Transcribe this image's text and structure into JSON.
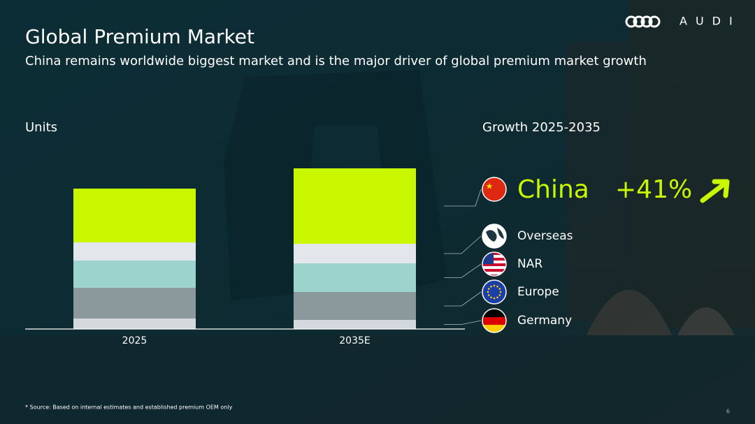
{
  "brand": "AUDI",
  "footnote": "* Source: Based on internal estimates and established premium OEM only",
  "page_number": 6,
  "chart_data": {
    "type": "stacked-bar",
    "title": "Global Premium Market",
    "subtitle": "China remains worldwide biggest market and is the major driver of global premium market growth",
    "y_label": "Units",
    "categories": [
      "2025",
      "2035E"
    ],
    "series": [
      {
        "name": "Germany",
        "color": "#d3d9dc",
        "values": [
          15,
          13
        ]
      },
      {
        "name": "Europe",
        "color": "#8b999c",
        "values": [
          44,
          40
        ]
      },
      {
        "name": "NAR",
        "color": "#9cd4cd",
        "values": [
          39,
          41
        ]
      },
      {
        "name": "Overseas",
        "color": "#e3e7ec",
        "values": [
          26,
          28
        ]
      },
      {
        "name": "China",
        "color": "#c9f700",
        "values": [
          77,
          108
        ]
      }
    ],
    "growth": {
      "title": "Growth 2025-2035",
      "value": 41,
      "value_label": "+41%"
    }
  }
}
